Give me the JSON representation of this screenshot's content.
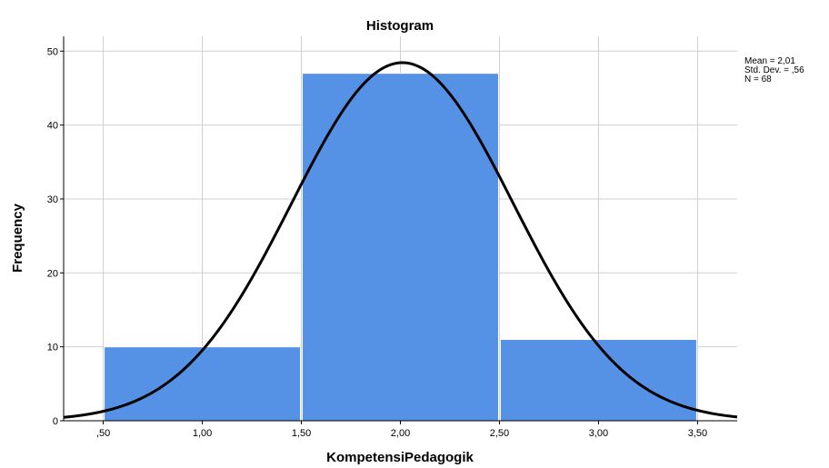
{
  "chart_data": {
    "type": "bar",
    "title": "Histogram",
    "xlabel": "KompetensiPedagogik",
    "ylabel": "Frequency",
    "bins": [
      {
        "start": 0.5,
        "end": 1.5,
        "count": 10
      },
      {
        "start": 1.5,
        "end": 2.5,
        "count": 47
      },
      {
        "start": 2.5,
        "end": 3.5,
        "count": 11
      }
    ],
    "xlim": [
      0.3,
      3.7
    ],
    "ylim": [
      0,
      52
    ],
    "x_ticks": [
      {
        "value": 0.5,
        "label": ",50"
      },
      {
        "value": 1.0,
        "label": "1,00"
      },
      {
        "value": 1.5,
        "label": "1,50"
      },
      {
        "value": 2.0,
        "label": "2,00"
      },
      {
        "value": 2.5,
        "label": "2,50"
      },
      {
        "value": 3.0,
        "label": "3,00"
      },
      {
        "value": 3.5,
        "label": "3,50"
      }
    ],
    "y_ticks": [
      {
        "value": 0,
        "label": "0"
      },
      {
        "value": 10,
        "label": "10"
      },
      {
        "value": 20,
        "label": "20"
      },
      {
        "value": 30,
        "label": "30"
      },
      {
        "value": 40,
        "label": "40"
      },
      {
        "value": 50,
        "label": "50"
      }
    ],
    "grid": true,
    "normal_curve": {
      "mean": 2.01,
      "std_dev": 0.56,
      "n": 68,
      "bin_width": 1.0
    },
    "stats": {
      "mean_label": "Mean = 2,01",
      "std_dev_label": "Std. Dev. = ,56",
      "n_label": "N = 68"
    },
    "colors": {
      "bar": "#5592e6",
      "curve": "#000000",
      "grid": "#cfcfcf"
    }
  }
}
